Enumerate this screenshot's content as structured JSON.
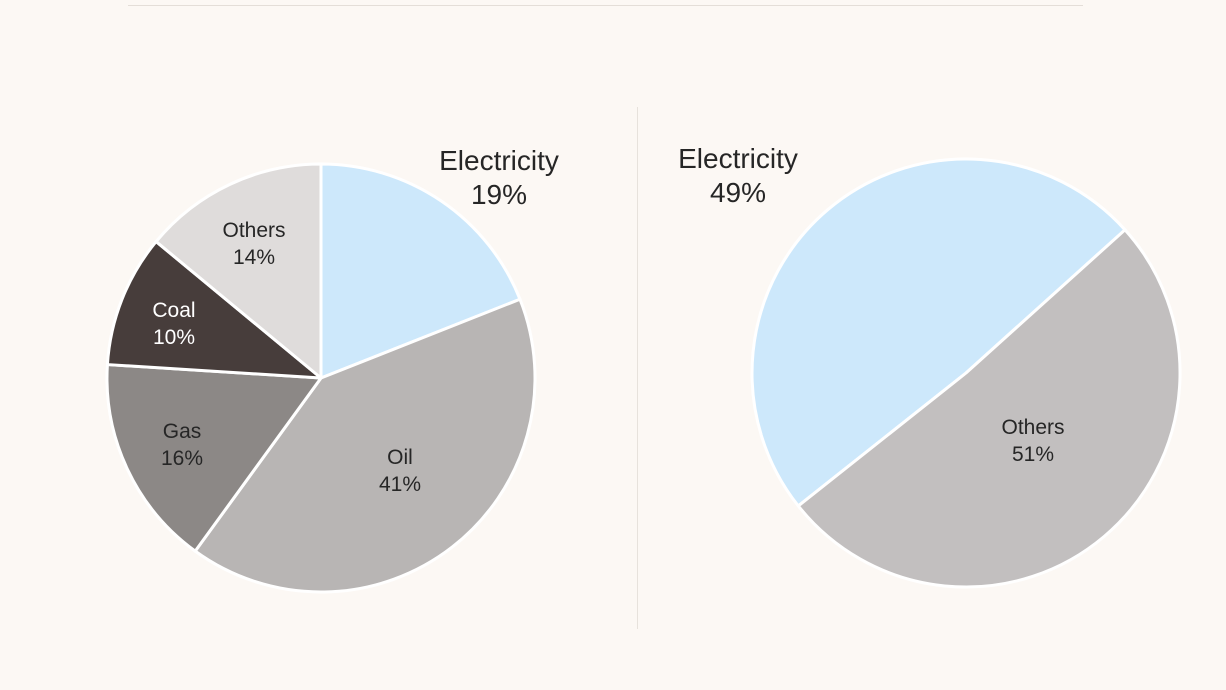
{
  "chart_data": [
    {
      "type": "pie",
      "slices": [
        {
          "label": "Electricity",
          "value": 19,
          "display": "19%",
          "color": "#cde8fb",
          "text_color": "#262626",
          "label_outside": true
        },
        {
          "label": "Oil",
          "value": 41,
          "display": "41%",
          "color": "#b8b5b4",
          "text_color": "#262626",
          "label_outside": false
        },
        {
          "label": "Gas",
          "value": 16,
          "display": "16%",
          "color": "#8c8886",
          "text_color": "#262626",
          "label_outside": false
        },
        {
          "label": "Coal",
          "value": 10,
          "display": "10%",
          "color": "#473d3b",
          "text_color": "#ffffff",
          "label_outside": false
        },
        {
          "label": "Others",
          "value": 14,
          "display": "14%",
          "color": "#dfdcdb",
          "text_color": "#262626",
          "label_outside": false
        }
      ],
      "start": "12 o'clock",
      "direction": "clockwise"
    },
    {
      "type": "pie",
      "slices": [
        {
          "label": "Electricity",
          "value": 49,
          "display": "49%",
          "color": "#cde8fb",
          "text_color": "#262626",
          "label_outside": true
        },
        {
          "label": "Others",
          "value": 51,
          "display": "51%",
          "color": "#c2bfbf",
          "text_color": "#262626",
          "label_outside": false
        }
      ],
      "start": "2 o'clock",
      "direction": "counterclockwise"
    }
  ]
}
